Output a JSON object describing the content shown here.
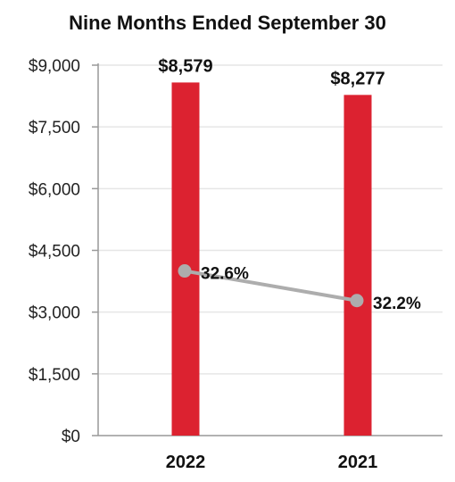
{
  "chart_data": {
    "type": "bar",
    "title": "Nine Months Ended September 30",
    "xlabel": "",
    "ylabel": "",
    "categories": [
      "2022",
      "2021"
    ],
    "ylim": [
      0,
      9000
    ],
    "yticks": [
      {
        "value": 0,
        "label": "$0"
      },
      {
        "value": 1500,
        "label": "$1,500"
      },
      {
        "value": 3000,
        "label": "$3,000"
      },
      {
        "value": 4500,
        "label": "$4,500"
      },
      {
        "value": 6000,
        "label": "$6,000"
      },
      {
        "value": 7500,
        "label": "$7,500"
      },
      {
        "value": 9000,
        "label": "$9,000"
      }
    ],
    "grid": true,
    "legend": "none",
    "series": [
      {
        "type": "bar",
        "values": [
          8579,
          8277
        ],
        "labels": [
          "$8,579",
          "$8,277"
        ],
        "color": "#dc2230"
      },
      {
        "type": "line",
        "axis_values": [
          4000,
          3280
        ],
        "values": [
          32.6,
          32.2
        ],
        "labels": [
          "32.6%",
          "32.2%"
        ],
        "color": "#adadad"
      }
    ]
  }
}
